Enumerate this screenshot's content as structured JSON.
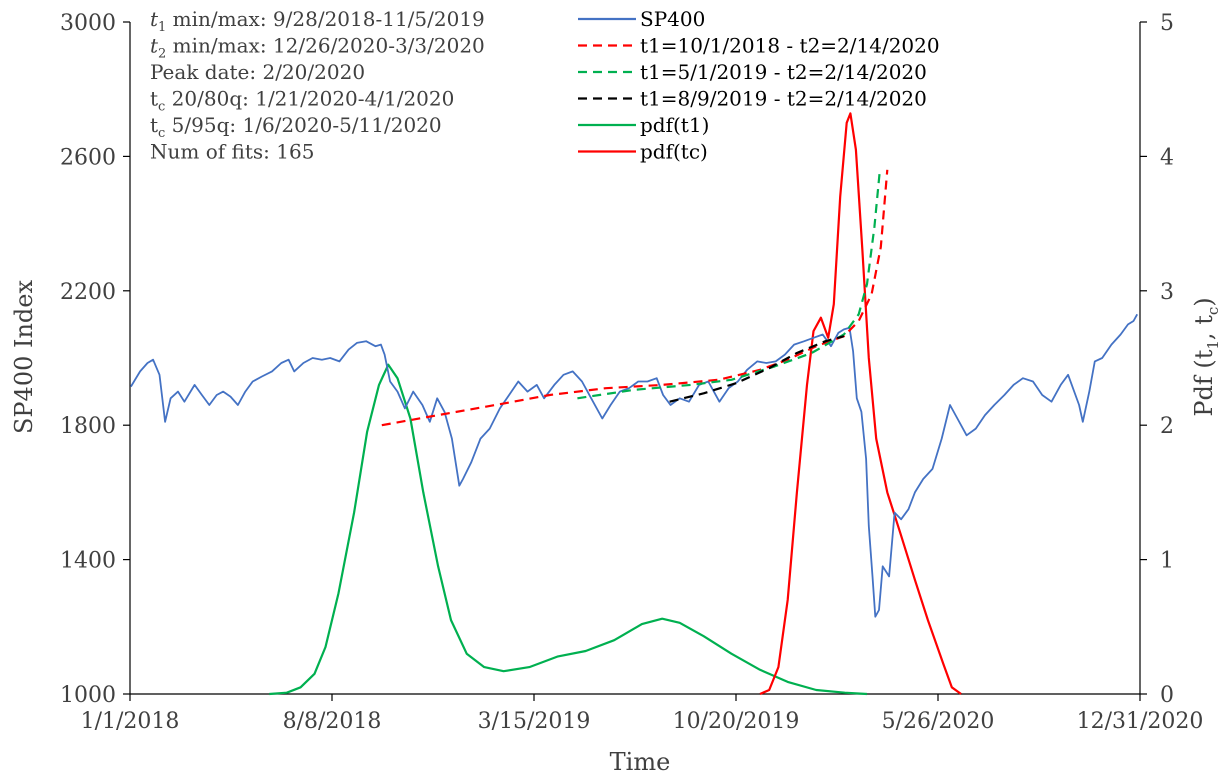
{
  "chart_data": {
    "type": "line",
    "xlabel": "Time",
    "ylabel_left": "SP400 Index",
    "ylabel_right": "Pdf (t",
    "ylabel_right_sub1": "1",
    "ylabel_right_mid": ", t",
    "ylabel_right_sub2": "c",
    "ylabel_right_end": ")",
    "x_ticks": [
      "1/1/2018",
      "8/8/2018",
      "3/15/2019",
      "10/20/2019",
      "5/26/2020",
      "12/31/2020"
    ],
    "x_tick_dates": [
      "2018-01-01",
      "2018-08-08",
      "2019-03-15",
      "2019-10-20",
      "2020-05-26",
      "2020-12-31"
    ],
    "xlim": [
      "2018-01-01",
      "2020-12-31"
    ],
    "ylim_left": [
      1000,
      3000
    ],
    "yticks_left": [
      "1000",
      "1400",
      "1800",
      "2200",
      "2600",
      "3000"
    ],
    "ylim_right": [
      0,
      5
    ],
    "yticks_right": [
      "0",
      "1",
      "2",
      "3",
      "4",
      "5"
    ],
    "annotations": [
      {
        "pre": "",
        "sub": "1",
        "var": "t",
        "text": " min/max: 9/28/2018-11/5/2019"
      },
      {
        "pre": "",
        "sub": "2",
        "var": "t",
        "text": " min/max: 12/26/2020-3/3/2020"
      },
      {
        "pre": "Peak date: 2/20/2020",
        "sub": "",
        "var": "",
        "text": ""
      },
      {
        "pre": "",
        "sub": "c",
        "var": "t",
        "text": " 20/80q: 1/21/2020-4/1/2020"
      },
      {
        "pre": "",
        "sub": "c",
        "var": "t",
        "text": " 5/95q: 1/6/2020-5/11/2020"
      },
      {
        "pre": "Num of fits: 165",
        "sub": "",
        "var": "",
        "text": ""
      }
    ],
    "legend": [
      {
        "label": "SP400",
        "color": "#4472c4",
        "dash": false
      },
      {
        "label": "t1=10/1/2018 - t2=2/14/2020",
        "color": "#ff0000",
        "dash": true
      },
      {
        "label": "t1=5/1/2019 - t2=2/14/2020",
        "color": "#00b050",
        "dash": true
      },
      {
        "label": "t1=8/9/2019 - t2=2/14/2020",
        "color": "#000000",
        "dash": true
      },
      {
        "label": "pdf(t1)",
        "color": "#00b050",
        "dash": false
      },
      {
        "label": "pdf(tc)",
        "color": "#ff0000",
        "dash": false
      }
    ],
    "series": [
      {
        "name": "SP400",
        "axis": "left",
        "color": "#4472c4",
        "points": [
          [
            "2018-01-02",
            1915
          ],
          [
            "2018-01-12",
            1960
          ],
          [
            "2018-01-20",
            1985
          ],
          [
            "2018-01-26",
            1995
          ],
          [
            "2018-02-02",
            1950
          ],
          [
            "2018-02-08",
            1810
          ],
          [
            "2018-02-14",
            1880
          ],
          [
            "2018-02-22",
            1900
          ],
          [
            "2018-03-01",
            1870
          ],
          [
            "2018-03-12",
            1920
          ],
          [
            "2018-03-20",
            1890
          ],
          [
            "2018-03-28",
            1860
          ],
          [
            "2018-04-05",
            1890
          ],
          [
            "2018-04-12",
            1900
          ],
          [
            "2018-04-20",
            1885
          ],
          [
            "2018-04-28",
            1860
          ],
          [
            "2018-05-06",
            1900
          ],
          [
            "2018-05-14",
            1930
          ],
          [
            "2018-05-24",
            1945
          ],
          [
            "2018-06-04",
            1960
          ],
          [
            "2018-06-14",
            1985
          ],
          [
            "2018-06-22",
            1995
          ],
          [
            "2018-06-28",
            1960
          ],
          [
            "2018-07-08",
            1985
          ],
          [
            "2018-07-18",
            2000
          ],
          [
            "2018-07-28",
            1995
          ],
          [
            "2018-08-06",
            2000
          ],
          [
            "2018-08-16",
            1990
          ],
          [
            "2018-08-26",
            2025
          ],
          [
            "2018-09-04",
            2045
          ],
          [
            "2018-09-14",
            2050
          ],
          [
            "2018-09-24",
            2035
          ],
          [
            "2018-09-30",
            2040
          ],
          [
            "2018-10-04",
            2010
          ],
          [
            "2018-10-10",
            1930
          ],
          [
            "2018-10-18",
            1900
          ],
          [
            "2018-10-26",
            1850
          ],
          [
            "2018-11-04",
            1900
          ],
          [
            "2018-11-14",
            1860
          ],
          [
            "2018-11-22",
            1810
          ],
          [
            "2018-11-30",
            1880
          ],
          [
            "2018-12-08",
            1840
          ],
          [
            "2018-12-16",
            1760
          ],
          [
            "2018-12-24",
            1620
          ],
          [
            "2018-12-28",
            1640
          ],
          [
            "2019-01-06",
            1690
          ],
          [
            "2019-01-16",
            1760
          ],
          [
            "2019-01-26",
            1790
          ],
          [
            "2019-02-06",
            1850
          ],
          [
            "2019-02-16",
            1890
          ],
          [
            "2019-02-26",
            1930
          ],
          [
            "2019-03-08",
            1900
          ],
          [
            "2019-03-18",
            1920
          ],
          [
            "2019-03-26",
            1880
          ],
          [
            "2019-04-06",
            1920
          ],
          [
            "2019-04-16",
            1950
          ],
          [
            "2019-04-26",
            1960
          ],
          [
            "2019-05-06",
            1930
          ],
          [
            "2019-05-16",
            1880
          ],
          [
            "2019-05-28",
            1820
          ],
          [
            "2019-06-06",
            1860
          ],
          [
            "2019-06-16",
            1900
          ],
          [
            "2019-06-26",
            1910
          ],
          [
            "2019-07-06",
            1930
          ],
          [
            "2019-07-16",
            1930
          ],
          [
            "2019-07-26",
            1940
          ],
          [
            "2019-08-02",
            1890
          ],
          [
            "2019-08-10",
            1860
          ],
          [
            "2019-08-20",
            1880
          ],
          [
            "2019-08-30",
            1870
          ],
          [
            "2019-09-10",
            1920
          ],
          [
            "2019-09-20",
            1930
          ],
          [
            "2019-10-02",
            1870
          ],
          [
            "2019-10-12",
            1910
          ],
          [
            "2019-10-22",
            1930
          ],
          [
            "2019-11-01",
            1965
          ],
          [
            "2019-11-12",
            1990
          ],
          [
            "2019-11-22",
            1985
          ],
          [
            "2019-12-02",
            1990
          ],
          [
            "2019-12-12",
            2010
          ],
          [
            "2019-12-22",
            2040
          ],
          [
            "2020-01-02",
            2050
          ],
          [
            "2020-01-12",
            2060
          ],
          [
            "2020-01-22",
            2070
          ],
          [
            "2020-01-31",
            2035
          ],
          [
            "2020-02-08",
            2075
          ],
          [
            "2020-02-14",
            2085
          ],
          [
            "2020-02-20",
            2090
          ],
          [
            "2020-02-24",
            2020
          ],
          [
            "2020-02-28",
            1880
          ],
          [
            "2020-03-04",
            1840
          ],
          [
            "2020-03-09",
            1700
          ],
          [
            "2020-03-12",
            1500
          ],
          [
            "2020-03-16",
            1350
          ],
          [
            "2020-03-19",
            1230
          ],
          [
            "2020-03-23",
            1250
          ],
          [
            "2020-03-27",
            1380
          ],
          [
            "2020-04-03",
            1350
          ],
          [
            "2020-04-09",
            1540
          ],
          [
            "2020-04-16",
            1520
          ],
          [
            "2020-04-24",
            1550
          ],
          [
            "2020-05-01",
            1600
          ],
          [
            "2020-05-10",
            1640
          ],
          [
            "2020-05-20",
            1670
          ],
          [
            "2020-05-30",
            1760
          ],
          [
            "2020-06-08",
            1860
          ],
          [
            "2020-06-16",
            1820
          ],
          [
            "2020-06-26",
            1770
          ],
          [
            "2020-07-06",
            1790
          ],
          [
            "2020-07-16",
            1830
          ],
          [
            "2020-07-26",
            1860
          ],
          [
            "2020-08-06",
            1890
          ],
          [
            "2020-08-16",
            1920
          ],
          [
            "2020-08-26",
            1940
          ],
          [
            "2020-09-06",
            1930
          ],
          [
            "2020-09-16",
            1890
          ],
          [
            "2020-09-26",
            1870
          ],
          [
            "2020-10-06",
            1920
          ],
          [
            "2020-10-14",
            1950
          ],
          [
            "2020-10-26",
            1860
          ],
          [
            "2020-10-30",
            1810
          ],
          [
            "2020-11-06",
            1900
          ],
          [
            "2020-11-12",
            1990
          ],
          [
            "2020-11-20",
            2000
          ],
          [
            "2020-11-30",
            2040
          ],
          [
            "2020-12-10",
            2070
          ],
          [
            "2020-12-18",
            2100
          ],
          [
            "2020-12-24",
            2110
          ],
          [
            "2020-12-28",
            2130
          ]
        ]
      },
      {
        "name": "t1=10/1/2018 - t2=2/14/2020",
        "axis": "left",
        "color": "#ff0000",
        "dash": true,
        "points": [
          [
            "2018-10-01",
            1800
          ],
          [
            "2018-12-01",
            1830
          ],
          [
            "2019-02-01",
            1860
          ],
          [
            "2019-04-01",
            1890
          ],
          [
            "2019-06-01",
            1910
          ],
          [
            "2019-08-01",
            1920
          ],
          [
            "2019-10-01",
            1935
          ],
          [
            "2019-11-15",
            1965
          ],
          [
            "2019-12-15",
            1995
          ],
          [
            "2020-01-15",
            2035
          ],
          [
            "2020-02-14",
            2065
          ],
          [
            "2020-03-01",
            2110
          ],
          [
            "2020-03-15",
            2190
          ],
          [
            "2020-03-25",
            2330
          ],
          [
            "2020-04-01",
            2560
          ]
        ]
      },
      {
        "name": "t1=5/1/2019 - t2=2/14/2020",
        "axis": "left",
        "color": "#00b050",
        "dash": true,
        "points": [
          [
            "2019-05-01",
            1880
          ],
          [
            "2019-07-01",
            1905
          ],
          [
            "2019-09-01",
            1920
          ],
          [
            "2019-10-15",
            1935
          ],
          [
            "2019-12-01",
            1975
          ],
          [
            "2020-01-10",
            2015
          ],
          [
            "2020-02-14",
            2070
          ],
          [
            "2020-03-01",
            2130
          ],
          [
            "2020-03-10",
            2220
          ],
          [
            "2020-03-18",
            2390
          ],
          [
            "2020-03-24",
            2560
          ]
        ]
      },
      {
        "name": "t1=8/9/2019 - t2=2/14/2020",
        "axis": "left",
        "color": "#000000",
        "dash": true,
        "points": [
          [
            "2019-08-09",
            1870
          ],
          [
            "2019-09-15",
            1895
          ],
          [
            "2019-10-20",
            1925
          ],
          [
            "2019-11-25",
            1970
          ],
          [
            "2019-12-25",
            2015
          ],
          [
            "2020-01-25",
            2050
          ],
          [
            "2020-02-14",
            2065
          ]
        ]
      },
      {
        "name": "pdf(t1)",
        "axis": "right",
        "color": "#00b050",
        "points": [
          [
            "2018-06-01",
            0.0
          ],
          [
            "2018-06-20",
            0.01
          ],
          [
            "2018-07-05",
            0.05
          ],
          [
            "2018-07-20",
            0.15
          ],
          [
            "2018-08-01",
            0.35
          ],
          [
            "2018-08-15",
            0.75
          ],
          [
            "2018-09-01",
            1.35
          ],
          [
            "2018-09-15",
            1.95
          ],
          [
            "2018-09-28",
            2.3
          ],
          [
            "2018-10-08",
            2.45
          ],
          [
            "2018-10-18",
            2.35
          ],
          [
            "2018-11-01",
            2.05
          ],
          [
            "2018-11-15",
            1.5
          ],
          [
            "2018-12-01",
            0.95
          ],
          [
            "2018-12-15",
            0.55
          ],
          [
            "2019-01-01",
            0.3
          ],
          [
            "2019-01-20",
            0.2
          ],
          [
            "2019-02-10",
            0.17
          ],
          [
            "2019-03-10",
            0.2
          ],
          [
            "2019-04-10",
            0.28
          ],
          [
            "2019-05-10",
            0.32
          ],
          [
            "2019-06-10",
            0.4
          ],
          [
            "2019-07-10",
            0.52
          ],
          [
            "2019-08-01",
            0.56
          ],
          [
            "2019-08-20",
            0.53
          ],
          [
            "2019-09-15",
            0.43
          ],
          [
            "2019-10-15",
            0.3
          ],
          [
            "2019-11-15",
            0.18
          ],
          [
            "2019-12-15",
            0.09
          ],
          [
            "2020-01-15",
            0.03
          ],
          [
            "2020-02-15",
            0.01
          ],
          [
            "2020-03-10",
            0.0
          ]
        ]
      },
      {
        "name": "pdf(tc)",
        "axis": "right",
        "color": "#ff0000",
        "points": [
          [
            "2019-11-15",
            0.0
          ],
          [
            "2019-11-25",
            0.03
          ],
          [
            "2019-12-05",
            0.2
          ],
          [
            "2019-12-15",
            0.7
          ],
          [
            "2019-12-25",
            1.5
          ],
          [
            "2020-01-05",
            2.3
          ],
          [
            "2020-01-12",
            2.7
          ],
          [
            "2020-01-20",
            2.8
          ],
          [
            "2020-01-28",
            2.65
          ],
          [
            "2020-02-03",
            2.9
          ],
          [
            "2020-02-10",
            3.7
          ],
          [
            "2020-02-17",
            4.25
          ],
          [
            "2020-02-21",
            4.32
          ],
          [
            "2020-02-27",
            4.05
          ],
          [
            "2020-03-05",
            3.3
          ],
          [
            "2020-03-12",
            2.5
          ],
          [
            "2020-03-20",
            1.9
          ],
          [
            "2020-04-01",
            1.5
          ],
          [
            "2020-04-15",
            1.2
          ],
          [
            "2020-05-01",
            0.85
          ],
          [
            "2020-05-15",
            0.55
          ],
          [
            "2020-06-01",
            0.22
          ],
          [
            "2020-06-10",
            0.05
          ],
          [
            "2020-06-20",
            0.0
          ]
        ]
      }
    ]
  }
}
